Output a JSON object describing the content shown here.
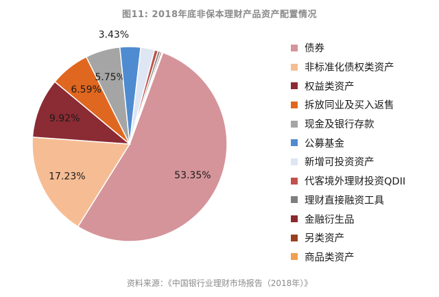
{
  "title": "图11: 2018年底非保本理财产品资产配置情况",
  "source": "资料来源：《中国银行业理财市场报告（2018年）》",
  "chart_data": {
    "type": "pie",
    "labels": [
      "债券",
      "非标准化债权类资产",
      "权益类资产",
      "拆放同业及买入返售",
      "现金及银行存款",
      "公募基金",
      "新增可投资资产",
      "代客境外理财投资QDII",
      "理财直接融资工具",
      "金融衍生品",
      "另类资产",
      "商品类资产"
    ],
    "values": [
      53.35,
      17.23,
      9.92,
      6.59,
      5.75,
      3.43,
      2.3,
      0.6,
      0.4,
      0.25,
      0.1,
      0.08
    ],
    "data_labels": [
      "53.35%",
      "17.23%",
      "9.92%",
      "6.59%",
      "5.75%",
      "3.43%",
      "",
      "",
      "",
      "",
      "",
      ""
    ],
    "colors": [
      "#d5949a",
      "#f6bd94",
      "#8b2b34",
      "#e0671f",
      "#a5a5a5",
      "#4f8bd0",
      "#dde6f2",
      "#c0524b",
      "#7f7f7f",
      "#8a2a30",
      "#9a4020",
      "#f0a050"
    ],
    "start_angle_deg": 20,
    "direction": "clockwise",
    "legend_position": "right"
  }
}
